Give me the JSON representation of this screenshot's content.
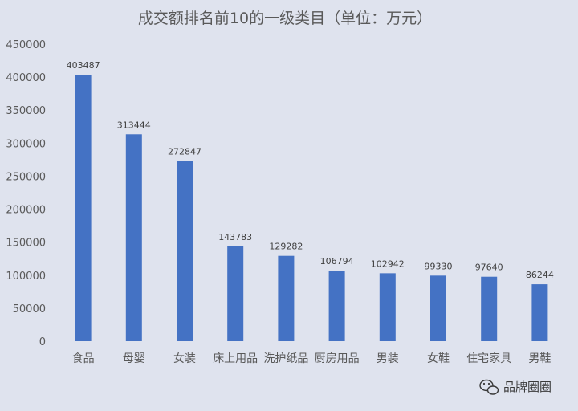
{
  "chart_data": {
    "type": "bar",
    "title": "成交额排名前10的一级类目（单位：万元）",
    "categories": [
      "食品",
      "母婴",
      "女装",
      "床上用品",
      "洗护纸品",
      "厨房用品",
      "男装",
      "女鞋",
      "住宅家具",
      "男鞋"
    ],
    "values": [
      403487,
      313444,
      272847,
      143783,
      129282,
      106794,
      102942,
      99330,
      97640,
      86244
    ],
    "ylim": [
      0,
      450000
    ],
    "yticks": [
      0,
      50000,
      100000,
      150000,
      200000,
      250000,
      300000,
      350000,
      400000,
      450000
    ],
    "xlabel": "",
    "ylabel": "",
    "grid": false,
    "legend": "none",
    "bar_color": "#4472c4",
    "background_color": "#dfe3ee"
  },
  "watermark": {
    "text": "品牌圈圈",
    "icon": "wechat-icon"
  }
}
